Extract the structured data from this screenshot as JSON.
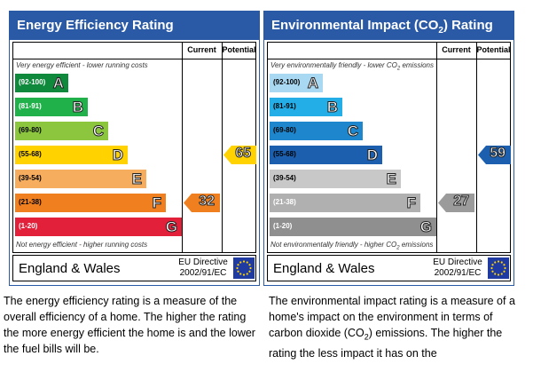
{
  "energy": {
    "title": "Energy Efficiency Rating",
    "current_label": "Current",
    "potential_label": "Potential",
    "top_caption": "Very energy efficient - lower running costs",
    "bottom_caption": "Not energy efficient - higher running costs",
    "bands": [
      {
        "range": "(92-100)",
        "letter": "A",
        "color": "#0f8a3c",
        "range_color": "#ffffff"
      },
      {
        "range": "(81-91)",
        "letter": "B",
        "color": "#20b14a",
        "range_color": "#ffffff"
      },
      {
        "range": "(69-80)",
        "letter": "C",
        "color": "#8cc63f",
        "range_color": "#000000"
      },
      {
        "range": "(55-68)",
        "letter": "D",
        "color": "#ffd200",
        "range_color": "#000000"
      },
      {
        "range": "(39-54)",
        "letter": "E",
        "color": "#f7ad5e",
        "range_color": "#000000"
      },
      {
        "range": "(21-38)",
        "letter": "F",
        "color": "#f07f20",
        "range_color": "#000000"
      },
      {
        "range": "(1-20)",
        "letter": "G",
        "color": "#e3203a",
        "range_color": "#ffffff"
      }
    ],
    "current": {
      "value": "32",
      "band": 5,
      "color": "#f07f20"
    },
    "potential": {
      "value": "65",
      "band": 3,
      "color": "#ffd200"
    },
    "region": "England & Wales",
    "directive_line1": "EU Directive",
    "directive_line2": "2002/91/EC",
    "description": "The energy efficiency rating is a measure of the overall efficiency of a home. The higher the rating the more energy efficient the home is and the lower the fuel bills will be."
  },
  "environment": {
    "title_prefix": "Environmental Impact (CO",
    "title_sub": "2",
    "title_suffix": ") Rating",
    "current_label": "Current",
    "potential_label": "Potential",
    "top_caption_prefix": "Very environmentally friendly - lower CO",
    "top_caption_sub": "2",
    "top_caption_suffix": " emissions",
    "bottom_caption_prefix": "Not environmentally friendly - higher CO",
    "bottom_caption_sub": "2",
    "bottom_caption_suffix": " emissions",
    "bands": [
      {
        "range": "(92-100)",
        "letter": "A",
        "color": "#a9d8f3",
        "range_color": "#000000"
      },
      {
        "range": "(81-91)",
        "letter": "B",
        "color": "#24aee8",
        "range_color": "#000000"
      },
      {
        "range": "(69-80)",
        "letter": "C",
        "color": "#1e86cc",
        "range_color": "#000000"
      },
      {
        "range": "(55-68)",
        "letter": "D",
        "color": "#1b5fae",
        "range_color": "#000000"
      },
      {
        "range": "(39-54)",
        "letter": "E",
        "color": "#c8c8c8",
        "range_color": "#000000"
      },
      {
        "range": "(21-38)",
        "letter": "F",
        "color": "#b0b0b0",
        "range_color": "#ffffff"
      },
      {
        "range": "(1-20)",
        "letter": "G",
        "color": "#8f8f8f",
        "range_color": "#ffffff"
      }
    ],
    "current": {
      "value": "27",
      "band": 5,
      "color": "#9b9b9b"
    },
    "potential": {
      "value": "59",
      "band": 3,
      "color": "#1b5fae"
    },
    "region": "England & Wales",
    "directive_line1": "EU Directive",
    "directive_line2": "2002/91/EC",
    "description_prefix": "The environmental impact rating is a measure of a home's impact on the environment in terms of carbon dioxide (CO",
    "description_sub": "2",
    "description_suffix": ") emissions. The higher the rating the less impact it has on the"
  }
}
